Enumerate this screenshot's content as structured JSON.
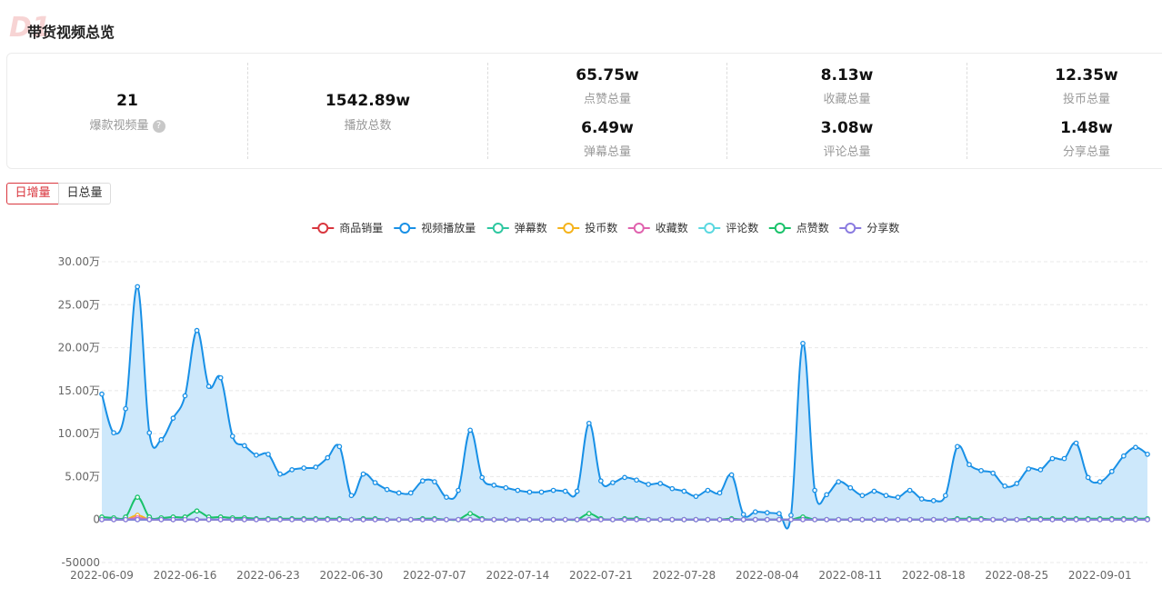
{
  "header": {
    "logo_text": "D1",
    "title": "带货视频总览"
  },
  "stats": {
    "hit_videos": {
      "value": "21",
      "label": "爆款视频量",
      "help": "?"
    },
    "plays": {
      "value": "1542.89w",
      "label": "播放总数"
    },
    "likes": {
      "value": "65.75w",
      "label": "点赞总量"
    },
    "danmaku": {
      "value": "6.49w",
      "label": "弹幕总量"
    },
    "favorites": {
      "value": "8.13w",
      "label": "收藏总量"
    },
    "comments": {
      "value": "3.08w",
      "label": "评论总量"
    },
    "coins": {
      "value": "12.35w",
      "label": "投币总量"
    },
    "shares": {
      "value": "1.48w",
      "label": "分享总量"
    }
  },
  "tabs": [
    {
      "label": "日增量",
      "active": true
    },
    {
      "label": "日总量",
      "active": false
    }
  ],
  "chart_data": {
    "type": "line",
    "area_fill": "#cde8fb",
    "ylim": [
      -50000,
      300000
    ],
    "yticks": [
      {
        "value": 300000,
        "label": "30.00万"
      },
      {
        "value": 250000,
        "label": "25.00万"
      },
      {
        "value": 200000,
        "label": "20.00万"
      },
      {
        "value": 150000,
        "label": "15.00万"
      },
      {
        "value": 100000,
        "label": "10.00万"
      },
      {
        "value": 50000,
        "label": "5.00万"
      },
      {
        "value": 0,
        "label": "0"
      },
      {
        "value": -50000,
        "label": "-50000"
      }
    ],
    "start_date": "2022-06-09",
    "xticks": [
      {
        "index": 0,
        "label": "2022-06-09"
      },
      {
        "index": 7,
        "label": "2022-06-16"
      },
      {
        "index": 14,
        "label": "2022-06-23"
      },
      {
        "index": 21,
        "label": "2022-06-30"
      },
      {
        "index": 28,
        "label": "2022-07-07"
      },
      {
        "index": 35,
        "label": "2022-07-14"
      },
      {
        "index": 42,
        "label": "2022-07-21"
      },
      {
        "index": 49,
        "label": "2022-07-28"
      },
      {
        "index": 56,
        "label": "2022-08-04"
      },
      {
        "index": 63,
        "label": "2022-08-11"
      },
      {
        "index": 70,
        "label": "2022-08-18"
      },
      {
        "index": 77,
        "label": "2022-08-25"
      },
      {
        "index": 84,
        "label": "2022-09-01"
      }
    ],
    "grid": true,
    "legend_position": "top",
    "series": [
      {
        "name": "商品销量",
        "color": "#d9363e",
        "values": [
          0,
          0,
          0,
          0,
          0,
          0,
          0,
          0,
          0,
          0,
          0,
          0,
          0,
          0,
          0,
          0,
          0,
          0,
          0,
          0,
          0,
          0,
          0,
          0,
          0,
          0,
          0,
          0,
          0,
          0,
          0,
          0,
          0,
          0,
          0,
          0,
          0,
          0,
          0,
          0,
          0,
          0,
          0,
          0,
          0,
          0,
          0,
          0,
          0,
          0,
          0,
          0,
          0,
          0,
          0,
          0,
          0,
          0,
          0,
          0,
          0,
          0,
          0,
          0,
          0,
          0,
          0,
          0,
          0,
          0,
          0,
          0,
          0,
          0,
          0,
          0,
          0,
          0,
          0,
          0,
          0,
          0,
          0,
          0,
          0,
          0,
          0,
          0,
          0
        ]
      },
      {
        "name": "视频播放量",
        "color": "#1890e6",
        "values": [
          146000,
          101000,
          129000,
          271000,
          101000,
          93000,
          118000,
          144000,
          220000,
          155000,
          165000,
          97000,
          86000,
          75000,
          76000,
          53000,
          58000,
          60000,
          61000,
          72000,
          85000,
          28000,
          53000,
          43000,
          35000,
          31000,
          31000,
          45000,
          44000,
          26000,
          34000,
          104000,
          49000,
          40000,
          37000,
          34000,
          32000,
          32000,
          34000,
          33000,
          33000,
          112000,
          45000,
          43000,
          49000,
          46000,
          41000,
          42000,
          36000,
          33000,
          27000,
          34000,
          31000,
          52000,
          6000,
          9000,
          8000,
          7000,
          5000,
          205000,
          34000,
          29000,
          44000,
          37000,
          28000,
          33000,
          28000,
          26000,
          34000,
          24000,
          22000,
          28000,
          85000,
          64000,
          57000,
          54000,
          39000,
          42000,
          59000,
          58000,
          71000,
          71000,
          89000,
          49000,
          44000,
          56000,
          74000,
          84000,
          76000
        ]
      },
      {
        "name": "弹幕数",
        "color": "#2ec7a0",
        "values": [
          0,
          0,
          0,
          0,
          0,
          0,
          0,
          0,
          0,
          0,
          0,
          0,
          0,
          0,
          0,
          0,
          0,
          0,
          0,
          0,
          0,
          0,
          0,
          0,
          0,
          0,
          0,
          0,
          0,
          0,
          0,
          0,
          0,
          0,
          0,
          0,
          0,
          0,
          0,
          0,
          0,
          0,
          0,
          0,
          0,
          0,
          0,
          0,
          0,
          0,
          0,
          0,
          0,
          0,
          0,
          0,
          0,
          0,
          0,
          0,
          0,
          0,
          0,
          0,
          0,
          0,
          0,
          0,
          0,
          0,
          0,
          0,
          0,
          0,
          0,
          0,
          0,
          0,
          0,
          0,
          0,
          0,
          0,
          0,
          0,
          0,
          0,
          0,
          0
        ]
      },
      {
        "name": "投币数",
        "color": "#f5b31b",
        "values": [
          0,
          0,
          0,
          5000,
          0,
          0,
          0,
          0,
          0,
          0,
          0,
          0,
          0,
          0,
          0,
          0,
          0,
          0,
          0,
          0,
          0,
          0,
          0,
          0,
          0,
          0,
          0,
          0,
          0,
          0,
          0,
          0,
          0,
          0,
          0,
          0,
          0,
          0,
          0,
          0,
          0,
          0,
          0,
          0,
          0,
          0,
          0,
          0,
          0,
          0,
          0,
          0,
          0,
          0,
          0,
          0,
          0,
          0,
          0,
          0,
          0,
          0,
          0,
          0,
          0,
          0,
          0,
          0,
          0,
          0,
          0,
          0,
          0,
          0,
          0,
          0,
          0,
          0,
          0,
          0,
          0,
          0,
          0,
          0,
          0,
          0,
          0,
          0,
          0
        ]
      },
      {
        "name": "收藏数",
        "color": "#e062ae",
        "values": [
          0,
          0,
          0,
          2000,
          0,
          0,
          0,
          0,
          0,
          0,
          0,
          0,
          0,
          0,
          0,
          0,
          0,
          0,
          0,
          0,
          0,
          0,
          0,
          0,
          0,
          0,
          0,
          0,
          0,
          0,
          0,
          0,
          0,
          0,
          0,
          0,
          0,
          0,
          0,
          0,
          0,
          0,
          0,
          0,
          0,
          0,
          0,
          0,
          0,
          0,
          0,
          0,
          0,
          0,
          0,
          0,
          0,
          0,
          0,
          0,
          0,
          0,
          0,
          0,
          0,
          0,
          0,
          0,
          0,
          0,
          0,
          0,
          0,
          0,
          0,
          0,
          0,
          0,
          0,
          0,
          0,
          0,
          0,
          0,
          0,
          0,
          0,
          0,
          0
        ]
      },
      {
        "name": "评论数",
        "color": "#5ad8e0",
        "values": [
          0,
          0,
          0,
          0,
          0,
          0,
          0,
          0,
          0,
          0,
          0,
          0,
          0,
          0,
          0,
          0,
          0,
          0,
          0,
          0,
          0,
          0,
          0,
          0,
          0,
          0,
          0,
          0,
          0,
          0,
          0,
          0,
          0,
          0,
          0,
          0,
          0,
          0,
          0,
          0,
          0,
          0,
          0,
          0,
          0,
          0,
          0,
          0,
          0,
          0,
          0,
          0,
          0,
          0,
          0,
          0,
          0,
          0,
          0,
          0,
          0,
          0,
          0,
          0,
          0,
          0,
          0,
          0,
          0,
          0,
          0,
          0,
          0,
          0,
          0,
          0,
          0,
          0,
          0,
          0,
          0,
          0,
          0,
          0,
          0,
          0,
          0,
          0,
          0
        ]
      },
      {
        "name": "点赞数",
        "color": "#19c26a",
        "values": [
          3000,
          2000,
          3000,
          26000,
          3000,
          2000,
          3000,
          3000,
          10000,
          3000,
          3000,
          2000,
          2000,
          1000,
          1000,
          1000,
          1000,
          1000,
          1000,
          1000,
          1000,
          0,
          1000,
          1000,
          0,
          0,
          0,
          1000,
          1000,
          0,
          0,
          7000,
          1000,
          0,
          0,
          0,
          0,
          0,
          0,
          0,
          0,
          7000,
          1000,
          0,
          1000,
          1000,
          0,
          0,
          0,
          0,
          0,
          0,
          0,
          1000,
          0,
          0,
          0,
          0,
          0,
          3000,
          0,
          0,
          0,
          0,
          0,
          0,
          0,
          0,
          0,
          0,
          0,
          0,
          1000,
          1000,
          1000,
          0,
          0,
          0,
          1000,
          1000,
          1000,
          1000,
          1000,
          1000,
          1000,
          1000,
          1000,
          1000,
          1000
        ]
      },
      {
        "name": "分享数",
        "color": "#8a7be0",
        "values": [
          0,
          0,
          0,
          0,
          0,
          0,
          0,
          0,
          0,
          0,
          0,
          0,
          0,
          0,
          0,
          0,
          0,
          0,
          0,
          0,
          0,
          0,
          0,
          0,
          0,
          0,
          0,
          0,
          0,
          0,
          0,
          0,
          0,
          0,
          0,
          0,
          0,
          0,
          0,
          0,
          0,
          0,
          0,
          0,
          0,
          0,
          0,
          0,
          0,
          0,
          0,
          0,
          0,
          0,
          0,
          0,
          0,
          0,
          0,
          0,
          0,
          0,
          0,
          0,
          0,
          0,
          0,
          0,
          0,
          0,
          0,
          0,
          0,
          0,
          0,
          0,
          0,
          0,
          0,
          0,
          0,
          0,
          0,
          0,
          0,
          0,
          0,
          0,
          0
        ]
      }
    ]
  }
}
